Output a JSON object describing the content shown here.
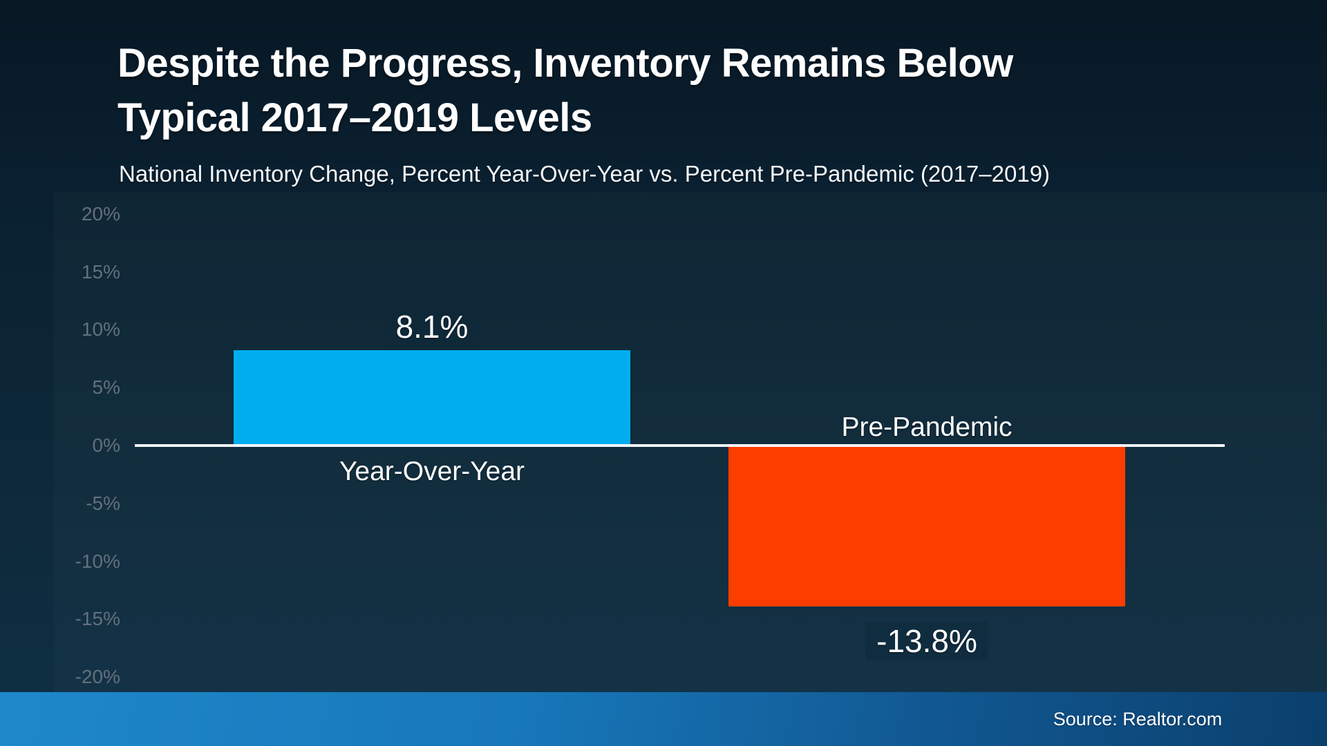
{
  "slide": {
    "title_lines": [
      "Despite the Progress, Inventory Remains Below",
      "Typical 2017–2019 Levels"
    ],
    "subtitle": "National Inventory Change, Percent Year-Over-Year vs. Percent Pre-Pandemic (2017–2019)",
    "source": "Source: Realtor.com"
  },
  "colors": {
    "positive_bar": "#00AEEF",
    "negative_bar": "#FB3D00",
    "axis_line": "#F2F5F8",
    "tick_label_gray": "#63707C",
    "footer_gradient_left": "#1E88CB",
    "footer_gradient_right": "#0B3F6C",
    "background_navy": "#0C2636",
    "text_white": "#FFFFFF"
  },
  "chart_data": {
    "type": "bar",
    "title": "Despite the Progress, Inventory Remains Below Typical 2017–2019 Levels",
    "subtitle": "National Inventory Change, Percent Year-Over-Year vs. Percent Pre-Pandemic (2017–2019)",
    "categories": [
      "Year-Over-Year",
      "Pre-Pandemic"
    ],
    "values": [
      8.1,
      -13.8
    ],
    "value_labels": [
      "8.1%",
      "-13.8%"
    ],
    "bar_colors": [
      "#00AEEF",
      "#FB3D00"
    ],
    "xlabel": "",
    "ylabel": "",
    "ylim": [
      -20,
      20
    ],
    "ytick_interval": 5,
    "yticks": [
      20,
      15,
      10,
      5,
      0,
      -5,
      -10,
      -15,
      -20
    ],
    "ytick_labels": [
      "20%",
      "15%",
      "10%",
      "5%",
      "0%",
      "-5%",
      "-10%",
      "-15%",
      "-20%"
    ],
    "grid": false,
    "legend": false,
    "zero_baseline": true,
    "source": "Source: Realtor.com"
  }
}
